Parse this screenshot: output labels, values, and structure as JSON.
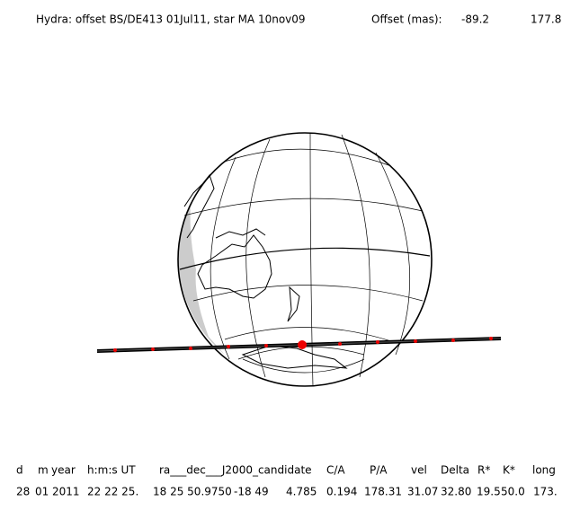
{
  "header": {
    "title": "Hydra: offset BS/DE413 01Jul11, star MA 10nov09",
    "offset_label": "Offset (mas):",
    "offset_values": [
      "-89.2",
      "177.8"
    ]
  },
  "table": {
    "columns": [
      "d",
      "m",
      "year",
      "h:m:s UT",
      "ra___dec___J2000_candidate",
      "C/A",
      "P/A",
      "vel",
      "Delta",
      "R*",
      "K*",
      "long"
    ],
    "row": [
      "28",
      "01",
      "2011",
      "22 22 25.",
      "18 25 50.9750",
      "-18 49",
      "4.785",
      "0.194",
      "178.31",
      "31.07",
      "32.80",
      "19.5",
      "50.0",
      "173."
    ]
  }
}
